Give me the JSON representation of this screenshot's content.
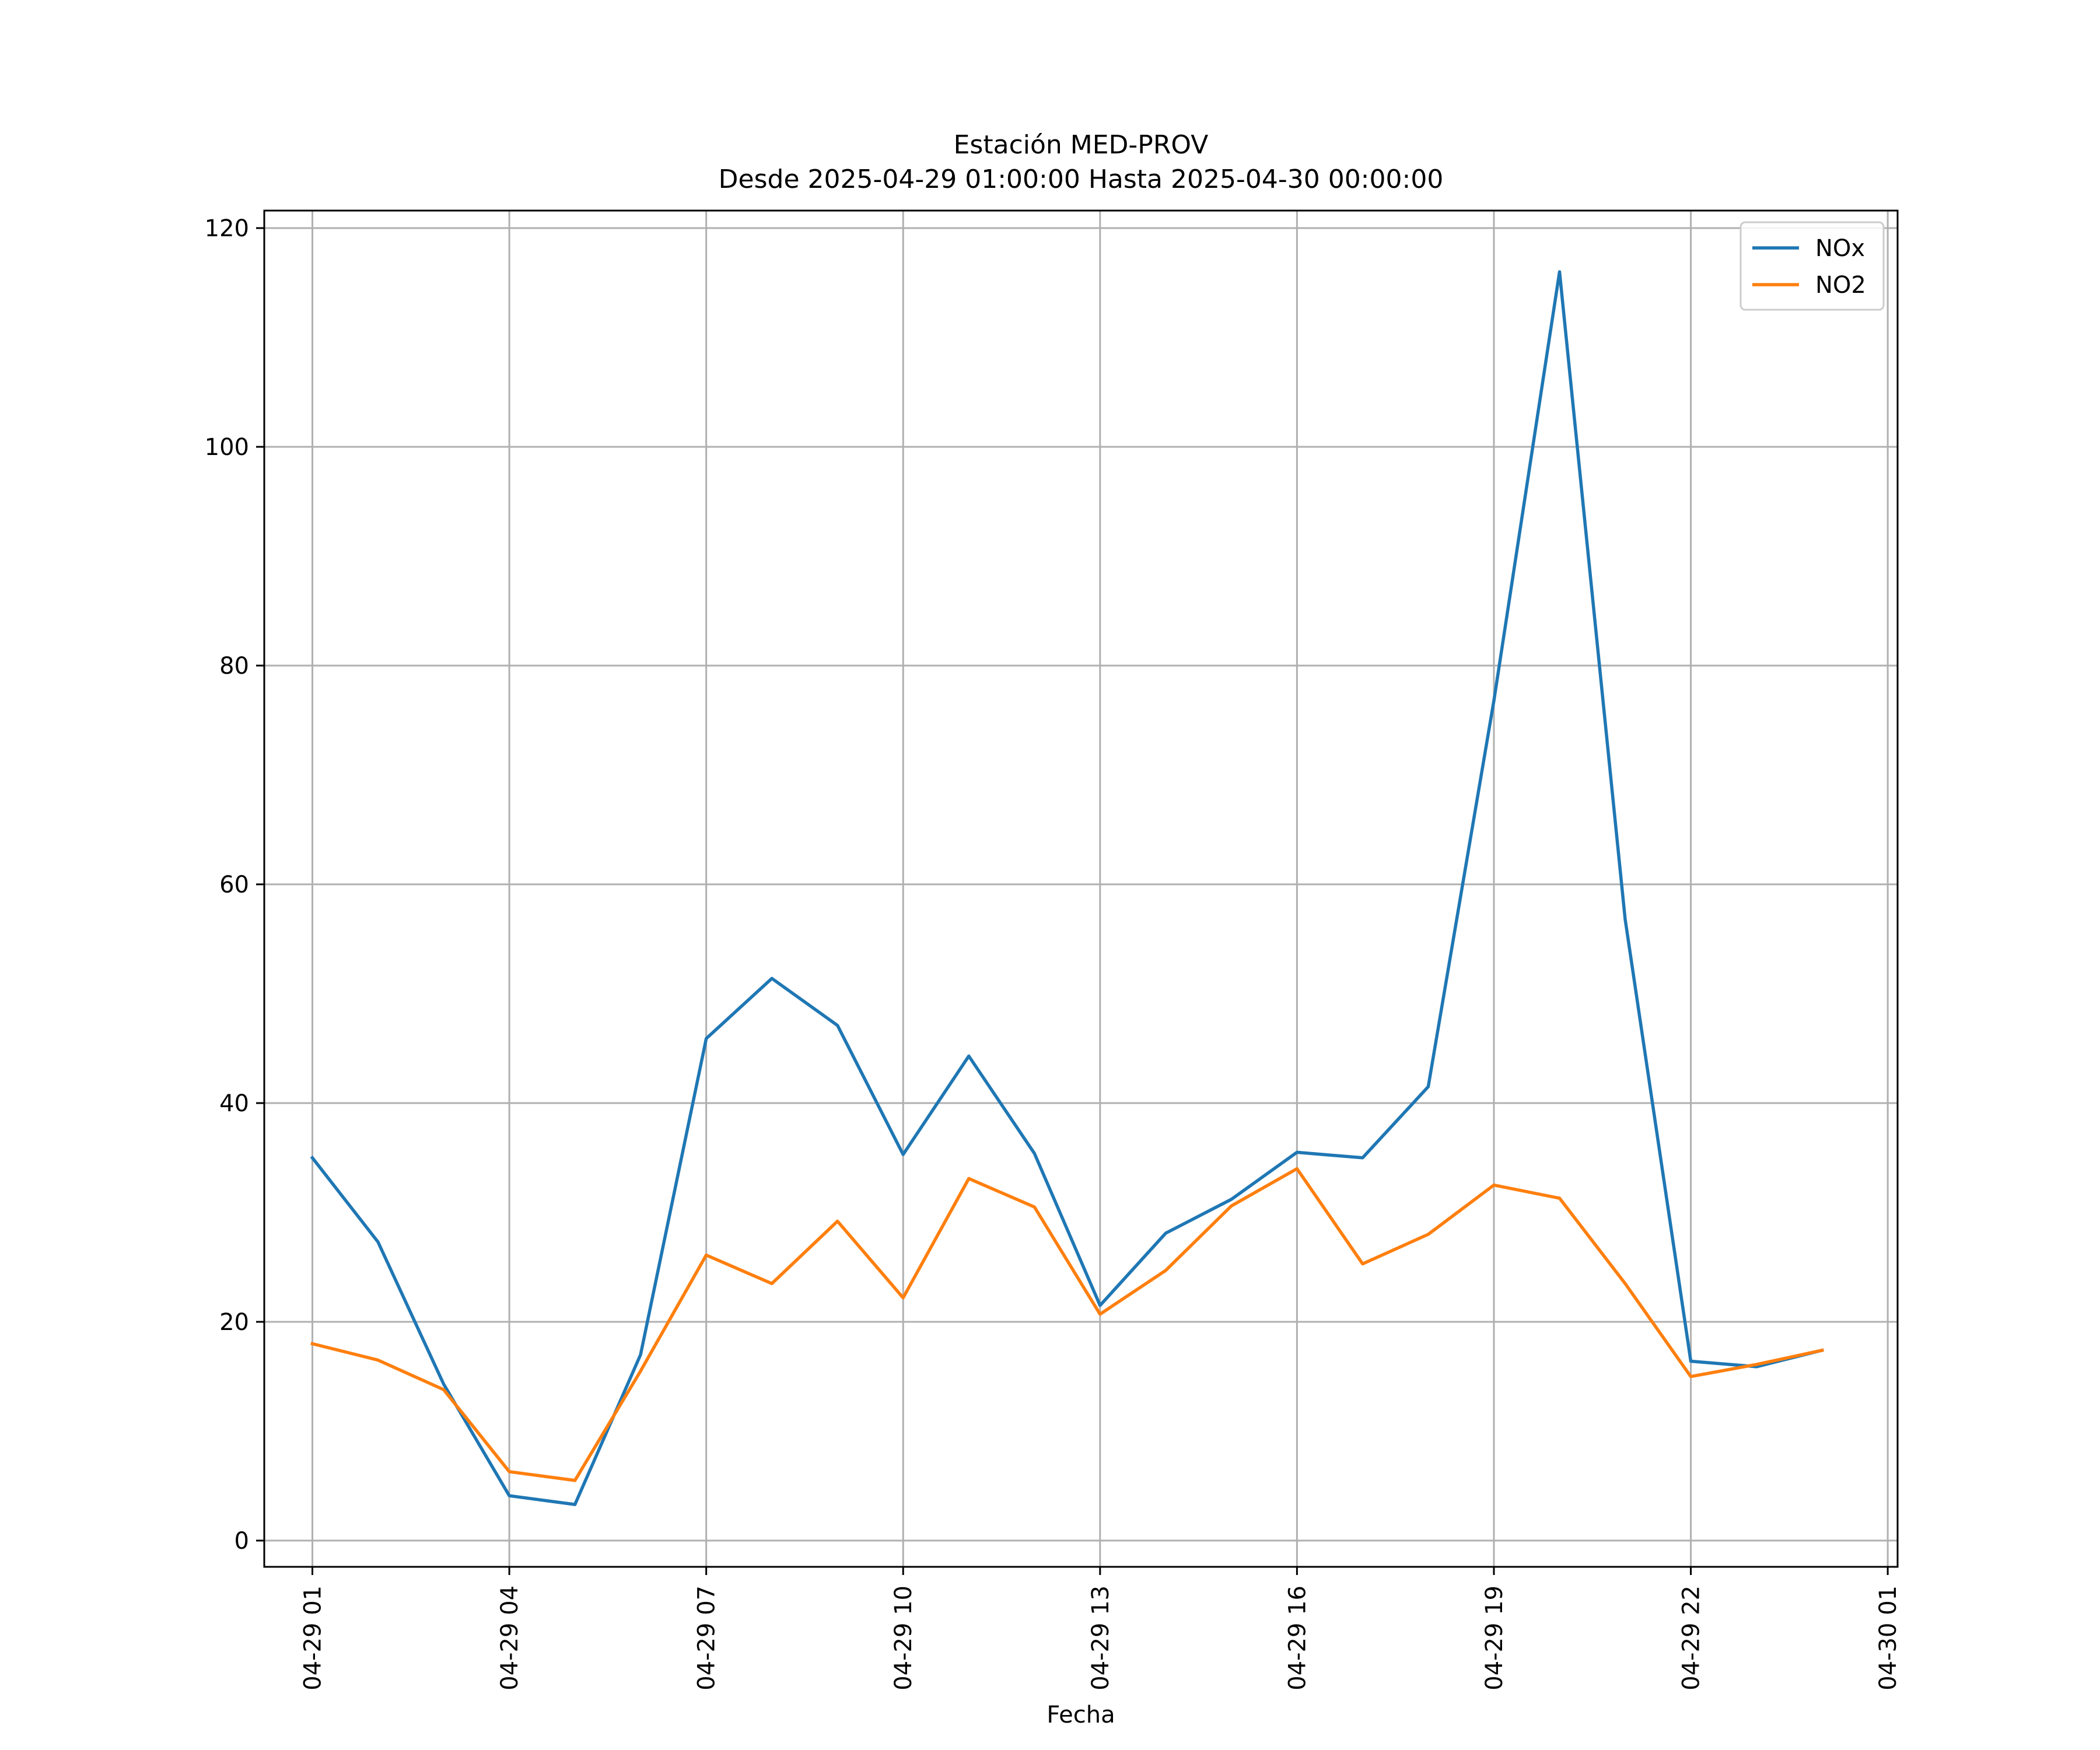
{
  "chart_data": {
    "type": "line",
    "title": "Estación MED-PROV",
    "subtitle": "Desde 2025-04-29 01:00:00 Hasta 2025-04-30 00:00:00",
    "xlabel": "Fecha",
    "ylabel": "",
    "x": [
      "04-29 01",
      "04-29 02",
      "04-29 03",
      "04-29 04",
      "04-29 05",
      "04-29 06",
      "04-29 07",
      "04-29 08",
      "04-29 09",
      "04-29 10",
      "04-29 11",
      "04-29 12",
      "04-29 13",
      "04-29 14",
      "04-29 15",
      "04-29 16",
      "04-29 17",
      "04-29 18",
      "04-29 19",
      "04-29 20",
      "04-29 21",
      "04-29 22",
      "04-29 23",
      "04-30 00"
    ],
    "xlim": [
      "04-29 00:16",
      "04-30 01:09"
    ],
    "ylim": [
      -2.4,
      121.6
    ],
    "xticks": [
      "04-29 01",
      "04-29 04",
      "04-29 07",
      "04-29 10",
      "04-29 13",
      "04-29 16",
      "04-29 19",
      "04-29 22",
      "04-30 01"
    ],
    "yticks": [
      0,
      20,
      40,
      60,
      80,
      100,
      120
    ],
    "grid": true,
    "legend_position": "top-right",
    "series": [
      {
        "name": "NOx",
        "color": "#1f77b4",
        "values": [
          35.0,
          27.3,
          14.3,
          4.1,
          3.3,
          17.0,
          45.9,
          51.4,
          47.1,
          35.3,
          44.3,
          35.4,
          21.5,
          28.1,
          31.2,
          35.5,
          35.0,
          41.5,
          76.8,
          116.0,
          56.8,
          16.4,
          15.9,
          17.4
        ]
      },
      {
        "name": "NO2",
        "color": "#ff7f0e",
        "values": [
          18.0,
          16.5,
          13.8,
          6.3,
          5.5,
          15.5,
          26.1,
          23.5,
          29.2,
          22.2,
          33.1,
          30.5,
          20.7,
          24.7,
          30.6,
          34.0,
          25.3,
          28.0,
          32.5,
          31.3,
          23.5,
          15.0,
          16.1,
          17.4
        ]
      }
    ]
  }
}
